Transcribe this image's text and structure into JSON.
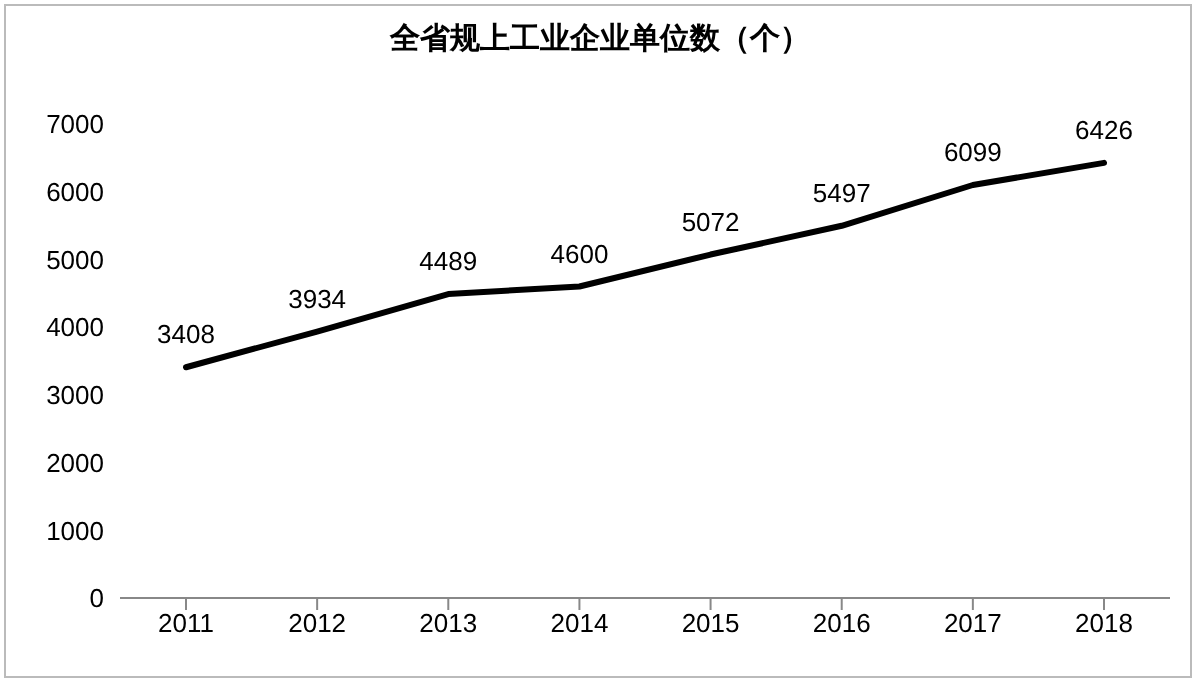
{
  "chart_data": {
    "type": "line",
    "title": "全省规上工业企业单位数（个）",
    "categories": [
      "2011",
      "2012",
      "2013",
      "2014",
      "2015",
      "2016",
      "2017",
      "2018"
    ],
    "values": [
      3408,
      3934,
      4489,
      4600,
      5072,
      5497,
      6099,
      6426
    ],
    "color": "#000000",
    "ylim": [
      0,
      7000
    ],
    "yticks": [
      0,
      1000,
      2000,
      3000,
      4000,
      5000,
      6000,
      7000
    ],
    "data_labels": true
  }
}
